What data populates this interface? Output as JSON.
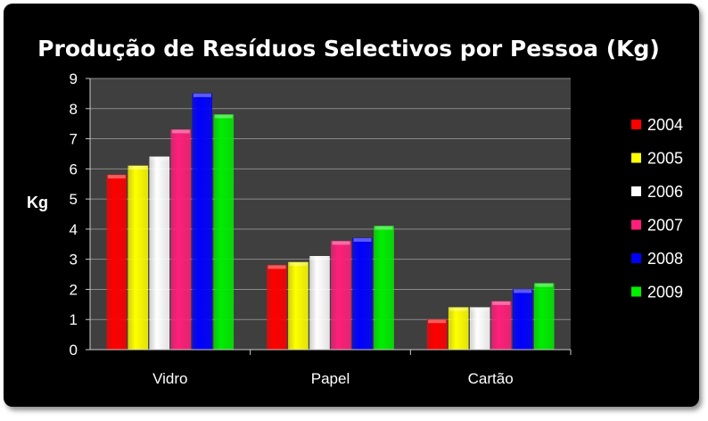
{
  "chart_data": {
    "type": "bar",
    "title": "Produção de Resíduos Selectivos por Pessoa (Kg)",
    "xlabel": "",
    "ylabel": "Kg",
    "ylim": [
      0,
      9
    ],
    "yticks": [
      0,
      1,
      2,
      3,
      4,
      5,
      6,
      7,
      8,
      9
    ],
    "categories": [
      "Vidro",
      "Papel",
      "Cartão"
    ],
    "legend_position": "right",
    "grid": true,
    "series": [
      {
        "name": "2004",
        "color": "#ff0000",
        "values": [
          5.8,
          2.8,
          1.0
        ]
      },
      {
        "name": "2005",
        "color": "#ffff00",
        "values": [
          6.1,
          2.9,
          1.4
        ]
      },
      {
        "name": "2006",
        "color": "#ffffff",
        "values": [
          6.4,
          3.1,
          1.4
        ]
      },
      {
        "name": "2007",
        "color": "#ff1f7a",
        "values": [
          7.3,
          3.6,
          1.6
        ]
      },
      {
        "name": "2008",
        "color": "#0000ff",
        "values": [
          8.5,
          3.7,
          2.0
        ]
      },
      {
        "name": "2009",
        "color": "#00ee00",
        "values": [
          7.8,
          4.1,
          2.2
        ]
      }
    ],
    "plot_background": "#3f3f3f"
  }
}
